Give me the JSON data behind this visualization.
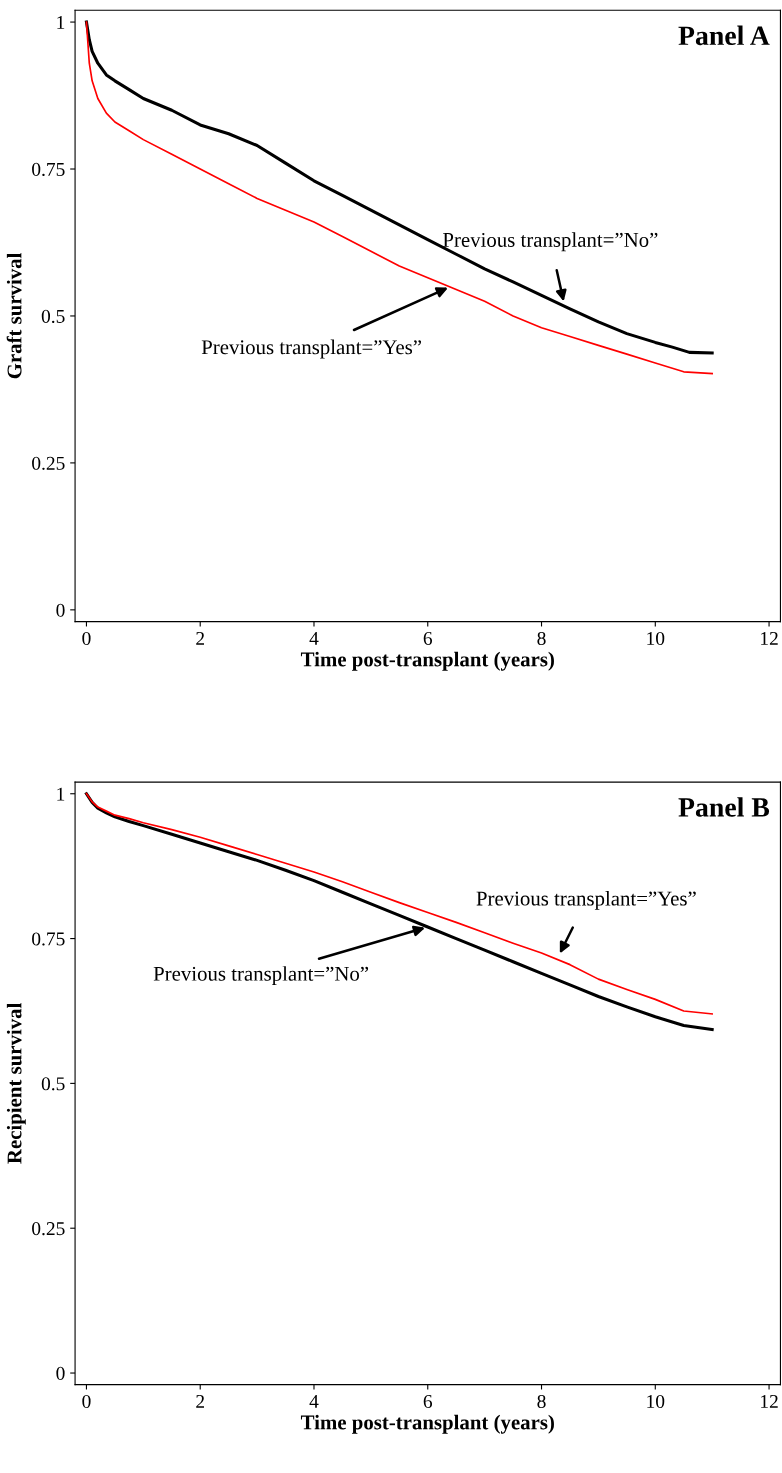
{
  "chart_data": [
    {
      "type": "line",
      "title": "Panel A",
      "xlabel": "Time post-transplant (years)",
      "ylabel": "Graft survival",
      "xlim": [
        -0.2,
        12.2
      ],
      "ylim": [
        -0.02,
        1.02
      ],
      "xticks": [
        0,
        2,
        4,
        6,
        8,
        10,
        12
      ],
      "yticks": [
        0,
        {
          "value": 0.25,
          "label": "0.25"
        },
        {
          "value": 0.5,
          "label": "0.5"
        },
        {
          "value": 0.75,
          "label": "0.75"
        },
        1
      ],
      "grid": false,
      "legend": false,
      "series": [
        {
          "color": "#000000",
          "x": [
            0,
            0.05,
            0.1,
            0.2,
            0.35,
            0.5,
            0.75,
            1,
            1.5,
            2,
            2.5,
            3,
            3.5,
            4,
            4.5,
            5,
            5.5,
            6,
            6.5,
            7,
            7.5,
            8,
            8.5,
            9,
            9.5,
            10,
            10.3,
            10.6,
            11
          ],
          "values": [
            1,
            0.97,
            0.95,
            0.93,
            0.91,
            0.9,
            0.885,
            0.87,
            0.85,
            0.825,
            0.81,
            0.79,
            0.76,
            0.73,
            0.705,
            0.68,
            0.655,
            0.63,
            0.605,
            0.58,
            0.558,
            0.535,
            0.512,
            0.49,
            0.47,
            0.455,
            0.447,
            0.438,
            0.437
          ]
        },
        {
          "color": "#ff0000",
          "x": [
            0,
            0.05,
            0.1,
            0.2,
            0.35,
            0.5,
            0.75,
            1,
            1.5,
            2,
            2.5,
            3,
            3.5,
            4,
            4.5,
            5,
            5.5,
            6,
            6.5,
            7,
            7.5,
            8,
            8.5,
            9,
            9.5,
            10,
            10.5,
            11
          ],
          "values": [
            1,
            0.93,
            0.9,
            0.87,
            0.845,
            0.83,
            0.815,
            0.8,
            0.775,
            0.75,
            0.725,
            0.7,
            0.68,
            0.66,
            0.635,
            0.61,
            0.585,
            0.565,
            0.545,
            0.525,
            0.5,
            0.48,
            0.465,
            0.45,
            0.435,
            0.42,
            0.405,
            0.402
          ]
        }
      ],
      "annotations": [
        {
          "text": "Previous transplant=”No”",
          "x": 8.4,
          "y": 0.52
        },
        {
          "text": "Previous transplant=”Yes”",
          "x": 6.4,
          "y": 0.55
        }
      ]
    },
    {
      "type": "line",
      "title": "Panel B",
      "xlabel": "Time post-transplant (years)",
      "ylabel": "Recipient survival",
      "xlim": [
        -0.2,
        12.2
      ],
      "ylim": [
        -0.02,
        1.02
      ],
      "xticks": [
        0,
        2,
        4,
        6,
        8,
        10,
        12
      ],
      "yticks": [
        0,
        {
          "value": 0.25,
          "label": "0.25"
        },
        {
          "value": 0.5,
          "label": "0.5"
        },
        {
          "value": 0.75,
          "label": "0.75"
        },
        1
      ],
      "grid": false,
      "legend": false,
      "series": [
        {
          "color": "#000000",
          "x": [
            0,
            0.1,
            0.2,
            0.35,
            0.5,
            0.75,
            1,
            1.5,
            2,
            2.5,
            3,
            3.5,
            4,
            4.5,
            5,
            5.5,
            6,
            6.5,
            7,
            7.5,
            8,
            8.5,
            9,
            9.5,
            10,
            10.5,
            11
          ],
          "values": [
            1,
            0.985,
            0.975,
            0.967,
            0.96,
            0.952,
            0.945,
            0.93,
            0.915,
            0.9,
            0.885,
            0.868,
            0.85,
            0.83,
            0.81,
            0.79,
            0.77,
            0.75,
            0.73,
            0.71,
            0.69,
            0.67,
            0.65,
            0.632,
            0.615,
            0.6,
            0.593
          ]
        },
        {
          "color": "#ff0000",
          "x": [
            0,
            0.1,
            0.2,
            0.35,
            0.5,
            0.75,
            1,
            1.5,
            2,
            2.5,
            3,
            3.5,
            4,
            4.5,
            5,
            5.5,
            6,
            6.5,
            7,
            7.5,
            8,
            8.5,
            9,
            9.5,
            10,
            10.5,
            11
          ],
          "values": [
            1,
            0.986,
            0.977,
            0.97,
            0.963,
            0.957,
            0.95,
            0.938,
            0.925,
            0.91,
            0.895,
            0.88,
            0.865,
            0.848,
            0.83,
            0.812,
            0.795,
            0.778,
            0.76,
            0.742,
            0.725,
            0.705,
            0.68,
            0.662,
            0.645,
            0.625,
            0.62
          ]
        }
      ],
      "annotations": [
        {
          "text": "Previous transplant=”Yes”",
          "x": 8.3,
          "y": 0.72
        },
        {
          "text": "Previous transplant=”No”",
          "x": 6.0,
          "y": 0.77
        }
      ]
    }
  ]
}
